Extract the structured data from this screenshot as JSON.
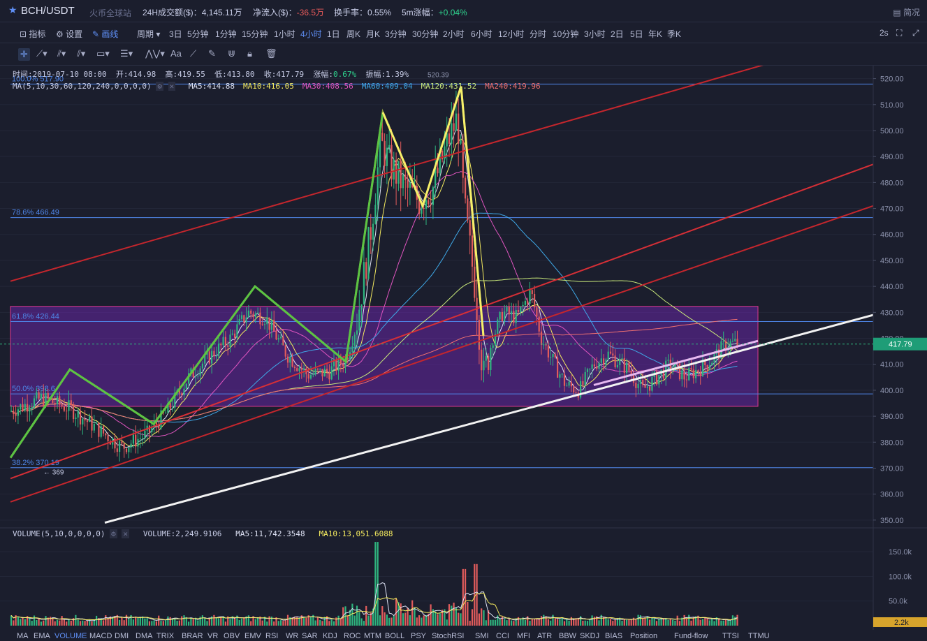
{
  "topbar": {
    "symbol": "BCH/USDT",
    "exchange": "火币全球站",
    "vol_label": "24H成交额($)：",
    "vol_value": "4,145.11万",
    "flow_label": "净流入($)：",
    "flow_value": "-36.5万",
    "turnover_label": "换手率：",
    "turnover_value": "0.55%",
    "change_label": "5m涨幅：",
    "change_value": "+0.04%",
    "simple": "简况"
  },
  "toolbar": {
    "indicators": "指标",
    "settings": "设置",
    "draw": "画线",
    "period": "周期",
    "periods": [
      "3日",
      "5分钟",
      "1分钟",
      "15分钟",
      "1小时",
      "4小时",
      "1日",
      "周K",
      "月K",
      "3分钟",
      "30分钟",
      "2小时",
      "6小时",
      "12小时",
      "分时",
      "10分钟",
      "3小时",
      "2日",
      "5日",
      "年K",
      "季K"
    ],
    "active_period": "4小时",
    "refresh": "2s"
  },
  "drawbar": {
    "text_tool": "Aa"
  },
  "ohlc": {
    "time_label": "时间:",
    "time": "2019-07-10 08:00",
    "open_label": "开:",
    "open": "414.98",
    "high_label": "高:",
    "high": "419.55",
    "low_label": "低:",
    "low": "413.80",
    "close_label": "收:",
    "close": "417.79",
    "chg_label": "涨幅:",
    "chg": "0.67%",
    "amp_label": "振幅:",
    "amp": "1.39%"
  },
  "ma": {
    "title": "MA(5,10,30,60,120,240,0,0,0,0)",
    "items": [
      {
        "label": "MA5:414.88",
        "color": "#dfe3f5"
      },
      {
        "label": "MA10:416.05",
        "color": "#f4ea5f"
      },
      {
        "label": "MA30:408.56",
        "color": "#e055c0"
      },
      {
        "label": "MA60:409.04",
        "color": "#3fa9e8"
      },
      {
        "label": "MA120:431.52",
        "color": "#c8e87a"
      },
      {
        "label": "MA240:419.96",
        "color": "#f07070"
      }
    ]
  },
  "fib": [
    {
      "label": "100.0% 517.90",
      "price": 517.9
    },
    {
      "label": "78.6% 466.49",
      "price": 466.49
    },
    {
      "label": "61.8% 426.44",
      "price": 426.44
    },
    {
      "label": "50.0% 398.6",
      "price": 398.6
    },
    {
      "label": "38.2% 370.19",
      "price": 370.19
    }
  ],
  "annotations": {
    "peak": "520.39",
    "low_marker": "← 369"
  },
  "price_axis": {
    "ticks": [
      "520.00",
      "510.00",
      "500.00",
      "490.00",
      "480.00",
      "470.00",
      "460.00",
      "450.00",
      "440.00",
      "430.00",
      "420.00",
      "410.00",
      "400.00",
      "390.00",
      "380.00",
      "370.00",
      "360.00",
      "350.00"
    ],
    "current": "417.79",
    "ylim": [
      347,
      525
    ]
  },
  "volume": {
    "title": "VOLUME(5,10,0,0,0,0)",
    "vol": "VOLUME:2,249.9106",
    "ma5": "MA5:11,742.3548",
    "ma10": "MA10:13,051.6088",
    "ticks": [
      "150.0k",
      "100.0k",
      "50.0k"
    ],
    "current": "2.2k"
  },
  "bottom_tabs": [
    "MA",
    "EMA",
    "VOLUME",
    "MACD",
    "DMI",
    "DMA",
    "TRIX",
    "BRAR",
    "VR",
    "OBV",
    "EMV",
    "RSI",
    "WR",
    "SAR",
    "KDJ",
    "ROC",
    "MTM",
    "BOLL",
    "PSY",
    "StochRSI",
    "SMI",
    "CCI",
    "MFI",
    "ATR",
    "BBW",
    "SKDJ",
    "BIAS",
    "Position",
    "Fund-flow",
    "TTSI",
    "TTMU"
  ],
  "active_tab": "VOLUME",
  "colors": {
    "up": "#2fb57f",
    "down": "#e25c5c",
    "accent": "#5f8ff5",
    "bg": "#1b1e2d"
  }
}
